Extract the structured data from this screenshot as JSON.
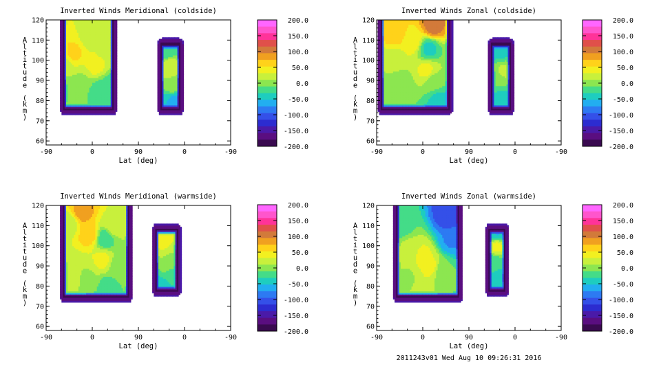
{
  "footer": {
    "stamp": "2011243v01 Wed Aug 10 09:26:31 2016"
  },
  "colorbar": {
    "ticks": [
      "200.0",
      "150.0",
      "100.0",
      "50.0",
      "0.0",
      "-50.0",
      "-100.0",
      "-150.0",
      "-200.0"
    ],
    "colors": [
      "#ff66ff",
      "#ff55cc",
      "#ff3399",
      "#e0504a",
      "#d27a3a",
      "#f0a020",
      "#ffd21a",
      "#f2f020",
      "#c8f03c",
      "#8ce650",
      "#44dc88",
      "#1ecdbf",
      "#22aef0",
      "#2d7af2",
      "#3450e8",
      "#2c2cd0",
      "#4a1aa8",
      "#5a0e80",
      "#3a0a50"
    ]
  },
  "chart_data": [
    {
      "type": "heatmap",
      "title": "Inverted Winds Meridional (coldside)",
      "xlabel": "Lat (deg)",
      "ylabel": "Altitude (km)",
      "x_ticks": [
        "-90",
        "0",
        "90",
        "0",
        "-90"
      ],
      "y_ticks": [
        "60",
        "70",
        "80",
        "90",
        "100",
        "110",
        "120"
      ],
      "ylim": [
        58,
        120
      ],
      "colorbar_range": [
        -200,
        200
      ],
      "regions": [
        {
          "x_range": [
            -55,
            40
          ],
          "y_range": [
            76,
            120
          ],
          "extrema": [
            [
              -35,
              104,
              60
            ],
            [
              -55,
              97,
              25
            ],
            [
              -5,
              111,
              25
            ],
            [
              5,
              98,
              45
            ],
            [
              25,
              106,
              20
            ],
            [
              -20,
              90,
              10
            ],
            [
              -40,
              86,
              -10
            ],
            [
              10,
              85,
              -20
            ],
            [
              35,
              86,
              -30
            ]
          ]
        },
        {
          "x_range": [
            135,
            170
          ],
          "y_range": [
            76,
            108
          ],
          "extrema": [
            [
              150,
              97,
              30
            ],
            [
              158,
              88,
              5
            ],
            [
              145,
              105,
              -30
            ],
            [
              160,
              80,
              -60
            ]
          ]
        }
      ]
    },
    {
      "type": "heatmap",
      "title": "Inverted Winds Zonal (coldside)",
      "xlabel": "Lat (deg)",
      "ylabel": "Altitude (km)",
      "x_ticks": [
        "-90",
        "0",
        "90",
        "0",
        "-90"
      ],
      "y_ticks": [
        "60",
        "70",
        "80",
        "90",
        "100",
        "110",
        "120"
      ],
      "ylim": [
        58,
        120
      ],
      "colorbar_range": [
        -200,
        200
      ],
      "regions": [
        {
          "x_range": [
            -80,
            50
          ],
          "y_range": [
            76,
            120
          ],
          "extrema": [
            [
              20,
              117,
              110
            ],
            [
              -55,
              114,
              70
            ],
            [
              -20,
              110,
              50
            ],
            [
              8,
              95,
              40
            ],
            [
              -55,
              100,
              20
            ],
            [
              -45,
              88,
              -10
            ],
            [
              20,
              90,
              0
            ],
            [
              12,
              106,
              -40
            ],
            [
              30,
              80,
              -40
            ]
          ]
        },
        {
          "x_range": [
            135,
            170
          ],
          "y_range": [
            76,
            108
          ],
          "extrema": [
            [
              155,
              95,
              15
            ],
            [
              140,
              92,
              -10
            ],
            [
              150,
              104,
              -40
            ],
            [
              152,
              80,
              -40
            ]
          ]
        }
      ]
    },
    {
      "type": "heatmap",
      "title": "Inverted Winds Meridional (warmside)",
      "xlabel": "Lat (deg)",
      "ylabel": "Altitude (km)",
      "x_ticks": [
        "-90",
        "0",
        "90",
        "0",
        "-90"
      ],
      "y_ticks": [
        "60",
        "70",
        "80",
        "90",
        "100",
        "110",
        "120"
      ],
      "ylim": [
        58,
        120
      ],
      "colorbar_range": [
        -200,
        200
      ],
      "regions": [
        {
          "x_range": [
            -55,
            70
          ],
          "y_range": [
            75,
            120
          ],
          "extrema": [
            [
              -20,
              117,
              90
            ],
            [
              -5,
              106,
              70
            ],
            [
              -45,
              111,
              20
            ],
            [
              25,
              104,
              -30
            ],
            [
              40,
              110,
              30
            ],
            [
              20,
              93,
              40
            ],
            [
              -40,
              88,
              15
            ],
            [
              50,
              90,
              0
            ],
            [
              -10,
              85,
              10
            ],
            [
              30,
              80,
              -20
            ]
          ]
        },
        {
          "x_range": [
            125,
            165
          ],
          "y_range": [
            78,
            108
          ],
          "extrema": [
            [
              135,
              103,
              40
            ],
            [
              150,
              92,
              10
            ],
            [
              158,
              86,
              -20
            ],
            [
              140,
              80,
              -40
            ]
          ]
        }
      ]
    },
    {
      "type": "heatmap",
      "title": "Inverted Winds Zonal (warmside)",
      "xlabel": "Lat (deg)",
      "ylabel": "Altitude (km)",
      "x_ticks": [
        "-90",
        "0",
        "90",
        "0",
        "-90"
      ],
      "y_ticks": [
        "60",
        "70",
        "80",
        "90",
        "100",
        "110",
        "120"
      ],
      "ylim": [
        58,
        120
      ],
      "colorbar_range": [
        -200,
        200
      ],
      "regions": [
        {
          "x_range": [
            -50,
            70
          ],
          "y_range": [
            75,
            120
          ],
          "extrema": [
            [
              50,
              115,
              -120
            ],
            [
              55,
              103,
              -80
            ],
            [
              0,
              95,
              40
            ],
            [
              -25,
              98,
              20
            ],
            [
              15,
              90,
              40
            ],
            [
              -30,
              85,
              10
            ],
            [
              40,
              88,
              -10
            ],
            [
              -40,
              110,
              -20
            ]
          ]
        },
        {
          "x_range": [
            130,
            160
          ],
          "y_range": [
            78,
            108
          ],
          "extrema": [
            [
              145,
              100,
              40
            ],
            [
              140,
              92,
              -20
            ],
            [
              150,
              85,
              -40
            ],
            [
              145,
              106,
              -50
            ]
          ]
        }
      ]
    }
  ]
}
